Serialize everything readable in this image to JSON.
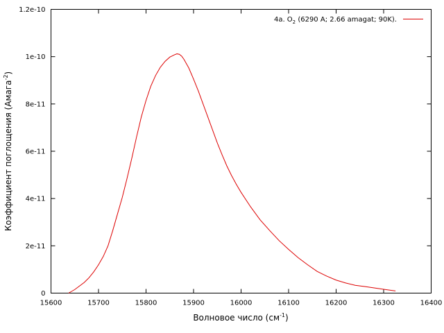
{
  "chart_data": {
    "type": "line",
    "title": "",
    "xlabel": "Волновое число (см",
    "xlabel_sup": "-1",
    "xlabel_tail": ")",
    "ylabel": "Коэффициент поглощения (Амага",
    "ylabel_sup": "-2",
    "ylabel_tail": ")",
    "xlim": [
      15600,
      16400
    ],
    "ylim": [
      0,
      1.2e-10
    ],
    "x_ticks": [
      15600,
      15700,
      15800,
      15900,
      16000,
      16100,
      16200,
      16300,
      16400
    ],
    "x_tick_labels": [
      "15600",
      "15700",
      "15800",
      "15900",
      "16000",
      "16100",
      "16200",
      "16300",
      "16400"
    ],
    "y_ticks": [
      0,
      2e-11,
      4e-11,
      6e-11,
      8e-11,
      1e-10,
      1.2e-10
    ],
    "y_tick_labels": [
      "0",
      "2e-11",
      "4e-11",
      "6e-11",
      "8e-11",
      "1e-10",
      "1.2e-10"
    ],
    "grid": false,
    "legend_position": "top-right",
    "series": [
      {
        "name_prefix": "4a. O",
        "name_sub": "2",
        "name_suffix": " (6290 A; 2.66 amagat; 90K).",
        "color": "#dd0000",
        "x": [
          15637,
          15650,
          15660,
          15670,
          15680,
          15690,
          15700,
          15710,
          15720,
          15730,
          15740,
          15750,
          15760,
          15770,
          15780,
          15790,
          15800,
          15810,
          15820,
          15830,
          15840,
          15850,
          15860,
          15865,
          15870,
          15875,
          15880,
          15890,
          15900,
          15910,
          15920,
          15930,
          15940,
          15950,
          15960,
          15970,
          15980,
          15990,
          16000,
          16020,
          16040,
          16060,
          16080,
          16100,
          16120,
          16140,
          16160,
          16180,
          16200,
          16220,
          16240,
          16260,
          16280,
          16300,
          16325
        ],
        "y": [
          0.0,
          1.5e-12,
          3e-12,
          4.5e-12,
          6.5e-12,
          9e-12,
          1.2e-11,
          1.55e-11,
          2e-11,
          2.65e-11,
          3.35e-11,
          4.05e-11,
          4.85e-11,
          5.7e-11,
          6.6e-11,
          7.45e-11,
          8.15e-11,
          8.75e-11,
          9.2e-11,
          9.55e-11,
          9.8e-11,
          9.98e-11,
          1.008e-10,
          1.012e-10,
          1.01e-10,
          1.002e-10,
          9.88e-11,
          9.52e-11,
          9.05e-11,
          8.55e-11,
          8e-11,
          7.45e-11,
          6.9e-11,
          6.35e-11,
          5.85e-11,
          5.38e-11,
          4.97e-11,
          4.6e-11,
          4.26e-11,
          3.65e-11,
          3.1e-11,
          2.65e-11,
          2.22e-11,
          1.85e-11,
          1.5e-11,
          1.2e-11,
          9.2e-12,
          7.2e-12,
          5.5e-12,
          4.3e-12,
          3.3e-12,
          2.8e-12,
          2.2e-12,
          1.6e-12,
          9e-13
        ]
      }
    ]
  }
}
